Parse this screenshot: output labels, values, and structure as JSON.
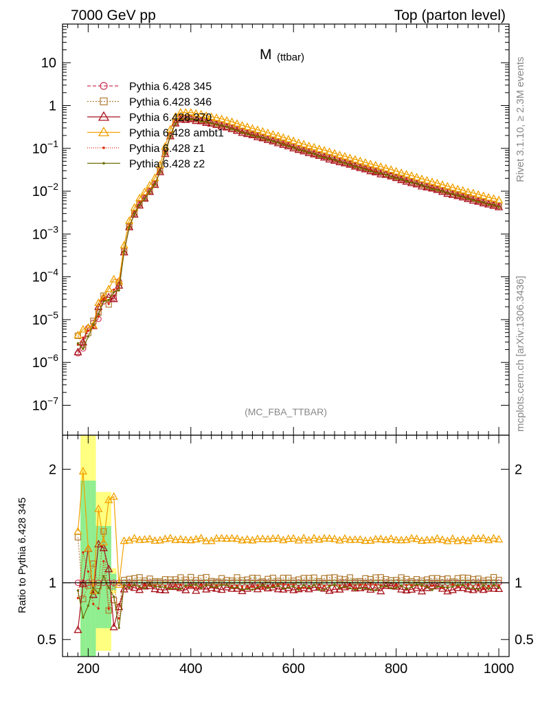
{
  "header": {
    "left": "7000 GeV pp",
    "right": "Top (parton level)"
  },
  "side_labels": {
    "rivet": "Rivet 3.1.10, ≥ 2.3M events",
    "mcplots": "mcplots.cern.ch [arXiv:1306.3436]"
  },
  "chart_data": [
    {
      "type": "line",
      "title": "M (ttbar)",
      "title_main": "M",
      "title_sub": "(ttbar)",
      "watermark": "(MC_FBA_TTBAR)",
      "xlim": [
        150,
        1020
      ],
      "ylim": [
        2e-08,
        80
      ],
      "yscale": "log",
      "y_ticks": [
        {
          "v": 1e-07,
          "base": "10",
          "exp": "−7"
        },
        {
          "v": 1e-06,
          "base": "10",
          "exp": "−6"
        },
        {
          "v": 1e-05,
          "base": "10",
          "exp": "−5"
        },
        {
          "v": 0.0001,
          "base": "10",
          "exp": "−4"
        },
        {
          "v": 0.001,
          "base": "10",
          "exp": "−3"
        },
        {
          "v": 0.01,
          "base": "10",
          "exp": "−2"
        },
        {
          "v": 0.1,
          "base": "10",
          "exp": "−1"
        },
        {
          "v": 1,
          "base": "1",
          "exp": ""
        },
        {
          "v": 10,
          "base": "10",
          "exp": ""
        }
      ],
      "legend_position": "top-left",
      "reference": {
        "x": [
          180,
          190,
          200,
          210,
          220,
          230,
          240,
          250,
          260,
          270,
          280,
          290,
          300,
          310,
          320,
          330,
          340,
          350,
          360,
          370,
          380,
          390,
          400,
          420,
          440,
          460,
          480,
          500,
          540,
          580,
          620,
          660,
          700,
          740,
          780,
          820,
          860,
          900,
          940,
          980,
          1000
        ],
        "y": [
          3e-06,
          3e-06,
          5e-06,
          8e-06,
          1.5e-05,
          2.5e-05,
          3e-05,
          5e-05,
          8e-05,
          0.0004,
          0.0015,
          0.003,
          0.005,
          0.007,
          0.01,
          0.015,
          0.03,
          0.08,
          0.2,
          0.4,
          0.5,
          0.5,
          0.5,
          0.45,
          0.4,
          0.35,
          0.3,
          0.25,
          0.18,
          0.13,
          0.09,
          0.065,
          0.047,
          0.034,
          0.025,
          0.018,
          0.013,
          0.0095,
          0.007,
          0.0052,
          0.0045
        ]
      },
      "series": [
        {
          "name": "Pythia 6.428 345",
          "color": "#cc3355",
          "dash": "5,3",
          "marker": "circle",
          "ratio": 1.0,
          "jitter": 0.01
        },
        {
          "name": "Pythia 6.428 346",
          "color": "#b07a30",
          "dash": "2,2",
          "marker": "square",
          "ratio": 1.03,
          "jitter": 0.02
        },
        {
          "name": "Pythia 6.428 370",
          "color": "#a8101a",
          "dash": "",
          "marker": "triangle",
          "ratio": 0.95,
          "jitter": 0.025
        },
        {
          "name": "Pythia 6.428 ambt1",
          "color": "#f0a000",
          "dash": "",
          "marker": "triangle-open",
          "ratio": 1.38,
          "jitter": 0.015
        },
        {
          "name": "Pythia 6.428 z1",
          "color": "#dd2200",
          "dash": "1,2",
          "marker": "dot",
          "ratio": 0.97,
          "jitter": 0.02
        },
        {
          "name": "Pythia 6.428 z2",
          "color": "#6b6b00",
          "dash": "",
          "marker": "dot",
          "ratio": 0.96,
          "jitter": 0.025
        }
      ]
    },
    {
      "type": "line",
      "ylabel": "Ratio to Pythia 6.428 345",
      "xlim": [
        150,
        1020
      ],
      "ylim": [
        0.35,
        2.3
      ],
      "x_ticks": [
        200,
        400,
        600,
        800,
        1000
      ],
      "y_ticks": [
        0.5,
        1,
        2
      ],
      "y_tick_labels": [
        "0.5",
        "1",
        "2"
      ],
      "reference_line": 1
    }
  ]
}
